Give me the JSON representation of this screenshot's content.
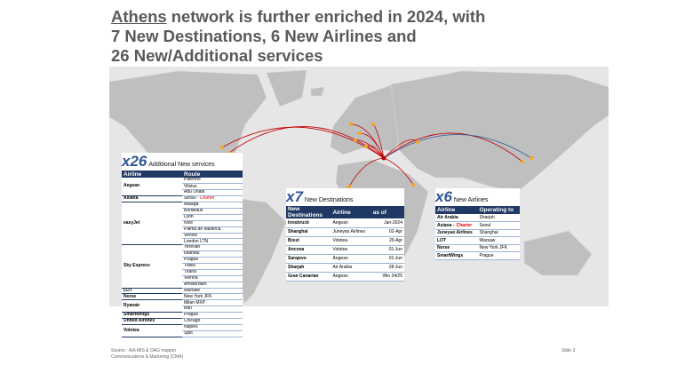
{
  "title": {
    "underlined": "Athens",
    "lines": [
      "network is further enriched in 2024, with",
      "7 New Destinations, 6 New Airlines and",
      "26 New/Additional services"
    ]
  },
  "services": {
    "badge": "x26",
    "label": "Additional New services",
    "headers": [
      "Airline",
      "Route"
    ],
    "groups": [
      {
        "airline": "Aegean",
        "routes": [
          "Palermo",
          "Vilnius",
          "Abu Dhabi"
        ]
      },
      {
        "airline": "Asiana",
        "routes": [
          {
            "text": "Seoul -",
            "note": "Charter"
          }
        ]
      },
      {
        "airline": "easyJet",
        "routes": [
          "Malaga",
          "Bordeaux",
          "Lyon",
          "Nice",
          "Palma de Mallorca",
          "Venice",
          "London LTN"
        ]
      },
      {
        "airline": "Sky Express",
        "routes": [
          "Yerevan",
          "Istanbul",
          "Prague",
          "Tbilisi",
          "Tirana",
          "Vienna",
          "Amsterdam"
        ]
      },
      {
        "airline": "LOT",
        "routes": [
          "Warsaw"
        ]
      },
      {
        "airline": "Norse",
        "routes": [
          "New York JFK"
        ]
      },
      {
        "airline": "Ryanair",
        "routes": [
          "Milan MXP",
          "Bari"
        ]
      },
      {
        "airline": "SmartWings",
        "routes": [
          "Prague"
        ]
      },
      {
        "airline": "United Airlines",
        "routes": [
          "Chicago"
        ]
      },
      {
        "airline": "Volotea",
        "routes": [
          "Naples",
          "Split"
        ]
      }
    ]
  },
  "destinations": {
    "badge": "x7",
    "label": "New Destinations",
    "headers": [
      "New Destinations",
      "Airline",
      "as of"
    ],
    "rows": [
      [
        "Innsbruck",
        "Aegean",
        "Jan-2024"
      ],
      [
        "Shanghai",
        "Juneyao Airlines",
        "02-Apr"
      ],
      [
        "Brest",
        "Volotea",
        "20-Apr"
      ],
      [
        "Ancona",
        "Volotea",
        "01-Jun"
      ],
      [
        "Sarajevo",
        "Aegean",
        "01-Jun"
      ],
      [
        "Sharjah",
        "Air Arabia",
        "28-Jun"
      ],
      [
        "Gran Canarian",
        "Aegean",
        "Win 24/25"
      ]
    ]
  },
  "airlines": {
    "badge": "x6",
    "label": "New Airlines",
    "headers": [
      "Airline",
      "Operating to"
    ],
    "rows": [
      [
        "Air Arabia",
        "Sharjah"
      ],
      [
        {
          "text": "Asiana -",
          "note": "Charter"
        },
        "Seoul"
      ],
      [
        "Juneyao Airlines",
        "Shanghai"
      ],
      [
        "LOT",
        "Warsaw"
      ],
      [
        "Norse",
        "New York JFK"
      ],
      [
        "SmartWings",
        "Prague"
      ]
    ]
  },
  "footer": {
    "source": "Source : AIA MIS & OAG mapper",
    "department": "Communications & Marketing (CMA)",
    "slide": "Slide 3"
  }
}
